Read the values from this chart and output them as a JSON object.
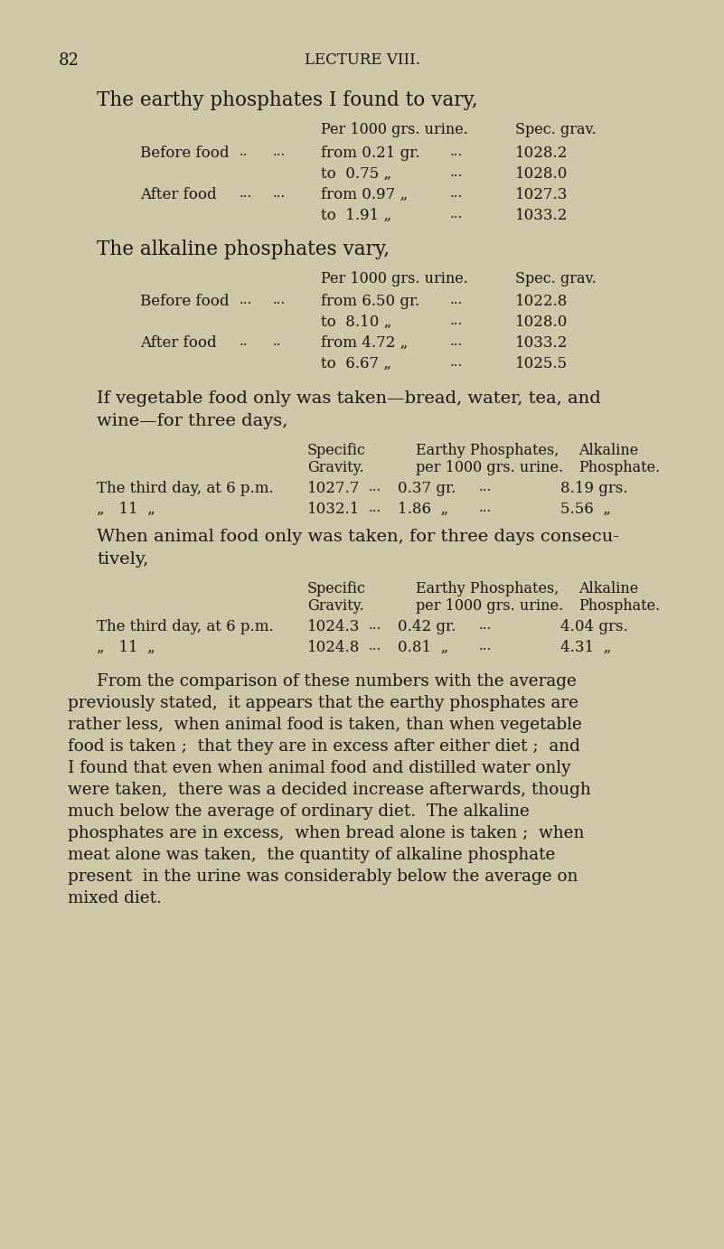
{
  "bg_color": "#cec8a8",
  "text_color": "#1a1510",
  "page_number": "82",
  "header": "LECTURE VIII.",
  "title1": "The earthy phosphates I found to vary,",
  "title2": "The alkaline phosphates vary,",
  "veg_intro_line1": "If vegetable food only was taken—bread, water, tea, and",
  "veg_intro_line2": "wine—for three days,",
  "animal_intro_line1": "When animal food only was taken, for three days consecu-",
  "animal_intro_line2": "tively,",
  "paragraph_lines": [
    "From the comparison of these numbers with the average",
    "previously stated,  it appears that the earthy phosphates are",
    "rather less,  when animal food is taken, than when vegetable",
    "food is taken ;  that they are in excess after either diet ;  and",
    "I found that even when animal food and distilled water only",
    "were taken,  there was a decided increase afterwards, though",
    "much below the average of ordinary diet.  The alkaline",
    "phosphates are in excess,  when bread alone is taken ;  when",
    "meat alone was taken,  the quantity of alkaline phosphate",
    "present  in the urine was considerably below the average on",
    "mixed diet."
  ]
}
